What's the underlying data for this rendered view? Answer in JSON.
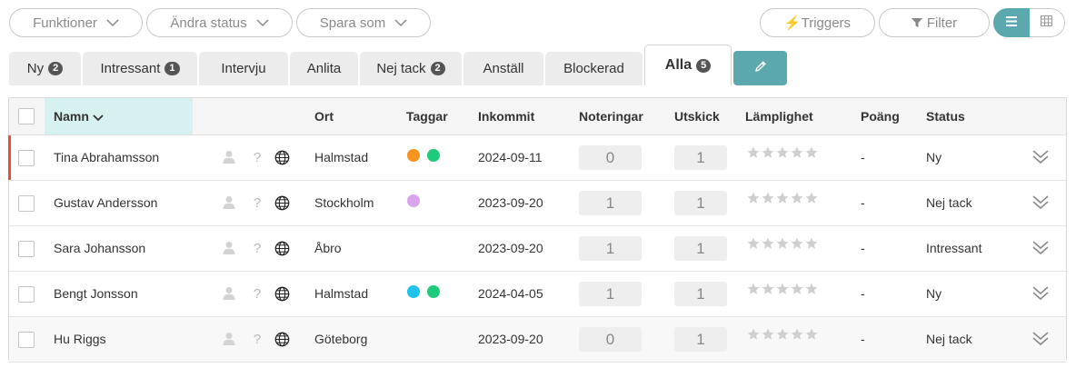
{
  "toolbar": {
    "functions_label": "Funktioner",
    "change_status_label": "Ändra status",
    "save_as_label": "Spara som",
    "triggers_label": "⚡Triggers",
    "filter_label": "Filter"
  },
  "tabs": [
    {
      "label": "Ny",
      "badge": "2"
    },
    {
      "label": "Intressant",
      "badge": "1"
    },
    {
      "label": "Intervju",
      "badge": ""
    },
    {
      "label": "Anlita",
      "badge": ""
    },
    {
      "label": "Nej tack",
      "badge": "2"
    },
    {
      "label": "Anställ",
      "badge": ""
    },
    {
      "label": "Blockerad",
      "badge": ""
    },
    {
      "label": "Alla",
      "badge": "5"
    }
  ],
  "columns": {
    "name": "Namn",
    "city": "Ort",
    "tags": "Taggar",
    "received": "Inkommit",
    "notes": "Noteringar",
    "sent": "Utskick",
    "suitability": "Lämplighet",
    "score": "Poäng",
    "status": "Status"
  },
  "rows": [
    {
      "name": "Tina Abrahamsson",
      "city": "Halmstad",
      "tags": [
        "#f7931e",
        "#1ecb7b"
      ],
      "received": "2024-09-11",
      "notes": "0",
      "sent": "1",
      "score": "-",
      "status": "Ny",
      "highlight": true
    },
    {
      "name": "Gustav Andersson",
      "city": "Stockholm",
      "tags": [
        "#d9a4ee"
      ],
      "received": "2023-09-20",
      "notes": "1",
      "sent": "1",
      "score": "-",
      "status": "Nej tack",
      "highlight": false
    },
    {
      "name": "Sara Johansson",
      "city": "Åbro",
      "tags": [],
      "received": "2023-09-20",
      "notes": "1",
      "sent": "1",
      "score": "-",
      "status": "Intressant",
      "highlight": false
    },
    {
      "name": "Bengt Jonsson",
      "city": "Halmstad",
      "tags": [
        "#1ec2ea",
        "#1ecb7b"
      ],
      "received": "2024-04-05",
      "notes": "1",
      "sent": "1",
      "score": "-",
      "status": "Ny",
      "highlight": false
    },
    {
      "name": "Hu Riggs",
      "city": "Göteborg",
      "tags": [],
      "received": "2023-09-20",
      "notes": "0",
      "sent": "1",
      "score": "-",
      "status": "Nej tack",
      "highlight": false
    }
  ],
  "colors": {
    "accent": "#5ba8ae",
    "highlight_bar": "#e74c3c",
    "name_header_bg": "#d7f1f1"
  }
}
